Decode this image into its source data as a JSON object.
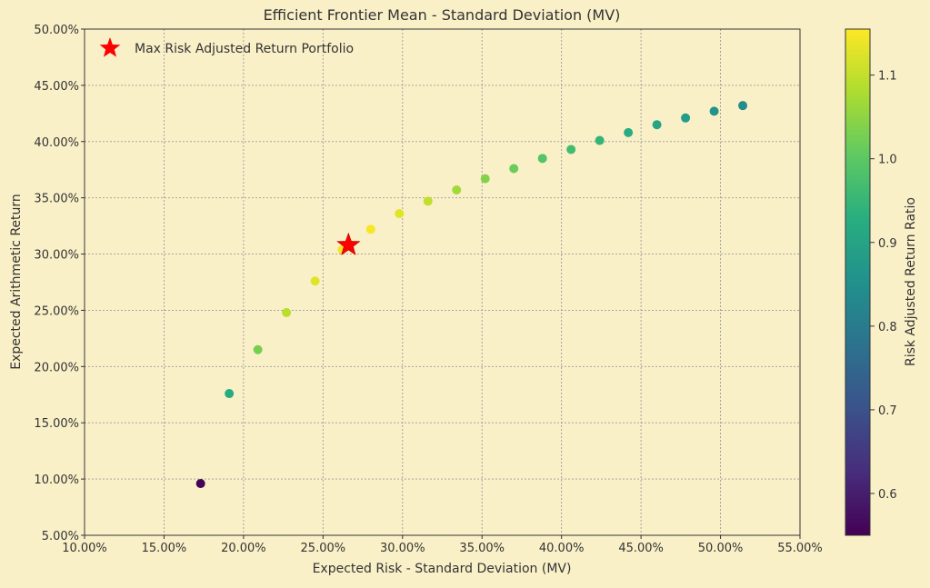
{
  "chart_data": {
    "type": "scatter",
    "title": "Efficient Frontier Mean - Standard Deviation (MV)",
    "xlabel": "Expected Risk - Standard Deviation (MV)",
    "ylabel": "Expected Arithmetic Return",
    "xlim": [
      0.1,
      0.55
    ],
    "ylim": [
      0.05,
      0.5
    ],
    "x_ticks": [
      0.1,
      0.15,
      0.2,
      0.25,
      0.3,
      0.35,
      0.4,
      0.45,
      0.5,
      0.55
    ],
    "x_tick_labels": [
      "10.00%",
      "15.00%",
      "20.00%",
      "25.00%",
      "30.00%",
      "35.00%",
      "40.00%",
      "45.00%",
      "50.00%",
      "55.00%"
    ],
    "y_ticks": [
      0.05,
      0.1,
      0.15,
      0.2,
      0.25,
      0.3,
      0.35,
      0.4,
      0.45,
      0.5
    ],
    "y_tick_labels": [
      "5.00%",
      "10.00%",
      "15.00%",
      "20.00%",
      "25.00%",
      "30.00%",
      "35.00%",
      "40.00%",
      "45.00%",
      "50.00%"
    ],
    "grid": true,
    "legend_position": "upper-left",
    "legend": [
      "Max Risk Adjusted Return Portfolio"
    ],
    "colorbar": {
      "label": "Risk Adjusted Return Ratio",
      "colormap": "viridis",
      "range": [
        0.55,
        1.155
      ],
      "ticks": [
        0.6,
        0.7,
        0.8,
        0.9,
        1.0,
        1.1
      ],
      "tick_labels": [
        "0.6",
        "0.7",
        "0.8",
        "0.9",
        "1.0",
        "1.1"
      ]
    },
    "points": [
      {
        "x": 0.173,
        "y": 0.096,
        "ratio": 0.555
      },
      {
        "x": 0.191,
        "y": 0.176,
        "ratio": 0.922
      },
      {
        "x": 0.209,
        "y": 0.215,
        "ratio": 1.028
      },
      {
        "x": 0.227,
        "y": 0.248,
        "ratio": 1.092
      },
      {
        "x": 0.245,
        "y": 0.276,
        "ratio": 1.127
      },
      {
        "x": 0.262,
        "y": 0.304,
        "ratio": 1.15
      },
      {
        "x": 0.28,
        "y": 0.322,
        "ratio": 1.148
      },
      {
        "x": 0.298,
        "y": 0.336,
        "ratio": 1.127
      },
      {
        "x": 0.316,
        "y": 0.347,
        "ratio": 1.097
      },
      {
        "x": 0.334,
        "y": 0.357,
        "ratio": 1.068
      },
      {
        "x": 0.352,
        "y": 0.367,
        "ratio": 1.04
      },
      {
        "x": 0.37,
        "y": 0.376,
        "ratio": 1.015
      },
      {
        "x": 0.388,
        "y": 0.385,
        "ratio": 0.99
      },
      {
        "x": 0.406,
        "y": 0.393,
        "ratio": 0.968
      },
      {
        "x": 0.424,
        "y": 0.401,
        "ratio": 0.946
      },
      {
        "x": 0.442,
        "y": 0.408,
        "ratio": 0.923
      },
      {
        "x": 0.46,
        "y": 0.415,
        "ratio": 0.902
      },
      {
        "x": 0.478,
        "y": 0.421,
        "ratio": 0.881
      },
      {
        "x": 0.496,
        "y": 0.427,
        "ratio": 0.861
      },
      {
        "x": 0.514,
        "y": 0.432,
        "ratio": 0.841
      }
    ],
    "max_portfolio": {
      "x": 0.266,
      "y": 0.308,
      "color": "#ff0000"
    }
  }
}
